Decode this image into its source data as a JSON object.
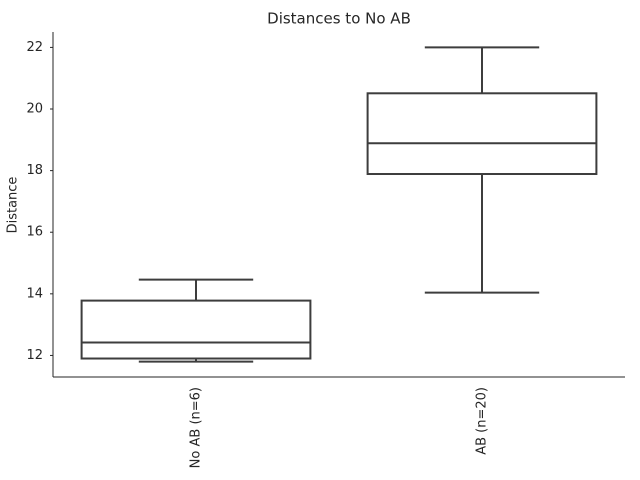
{
  "chart_data": {
    "type": "box",
    "title": "Distances to No AB",
    "y_label": "Distance",
    "categories": [
      "No AB (n=6)",
      "AB (n=20)"
    ],
    "min": [
      11.8,
      14.04
    ],
    "q1": [
      11.9,
      17.89
    ],
    "median": [
      12.42,
      18.89
    ],
    "q3": [
      13.78,
      20.51
    ],
    "max": [
      14.46,
      22.0
    ],
    "color": "#3d3d3d",
    "fill": "#ffffff",
    "ylim": [
      11.3,
      22.5
    ],
    "yticks": [
      12,
      14,
      16,
      18,
      20,
      22
    ],
    "grid": false
  }
}
